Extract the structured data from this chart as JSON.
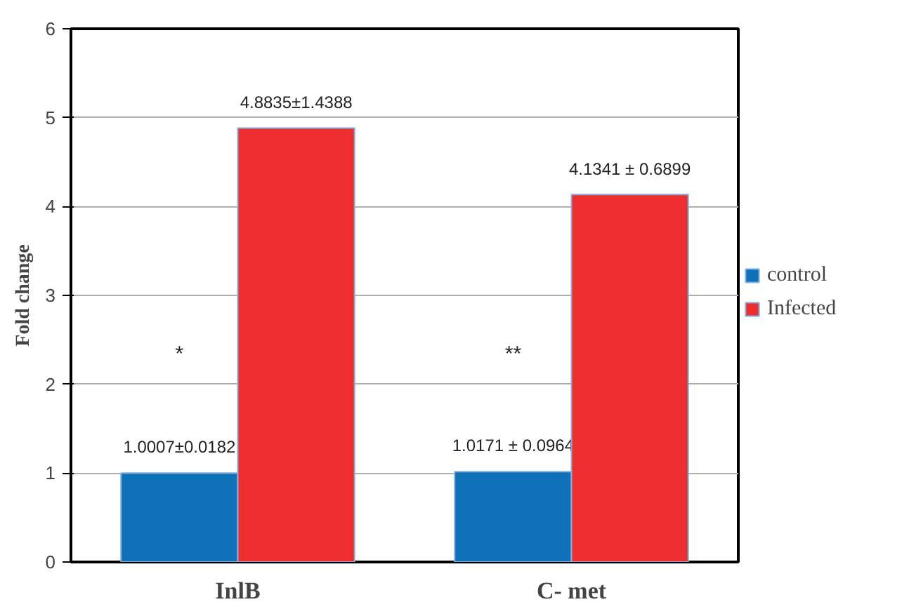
{
  "chart_data": {
    "type": "bar",
    "ylabel": "Fold change",
    "categories": [
      "InlB",
      "C- met"
    ],
    "series": [
      {
        "name": "control",
        "color": "#0f72b8",
        "values": [
          1.0007,
          1.0171
        ],
        "value_labels": [
          "1.0007±0.0182",
          "1.0171 ± 0.0964"
        ]
      },
      {
        "name": "Infected",
        "color": "#ee2e2e",
        "values": [
          4.8835,
          4.1341
        ],
        "value_labels": [
          "4.8835±1.4388",
          "4.1341 ± 0.6899"
        ]
      }
    ],
    "annotations": [
      "*",
      "**"
    ],
    "ylim": [
      0,
      6
    ],
    "yticks": [
      0,
      1,
      2,
      3,
      4,
      5,
      6
    ],
    "grid": "y",
    "legend": "right"
  }
}
